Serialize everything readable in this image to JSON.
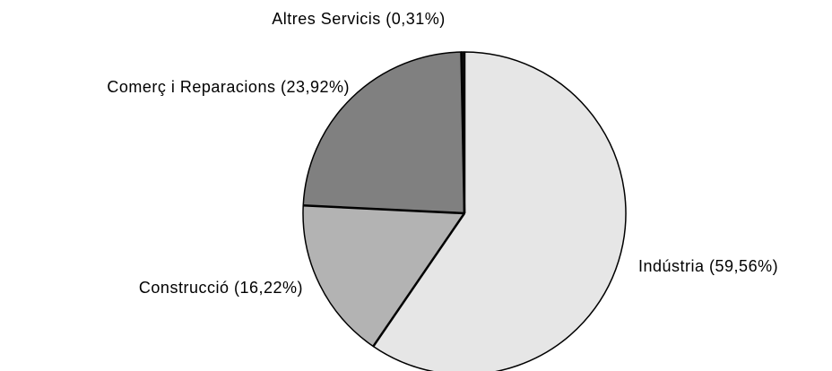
{
  "chart_data": {
    "type": "pie",
    "values": [
      59.56,
      16.22,
      23.92,
      0.31
    ],
    "value_labels": [
      "Indústria (59,56%)",
      "Construcció (16,22%)",
      "Comerç i Reparacions (23,92%)",
      "Altres Servicis (0,31%)"
    ],
    "colors": [
      "#e6e6e6",
      "#b3b3b3",
      "#808080",
      "#1a1a1a"
    ]
  }
}
